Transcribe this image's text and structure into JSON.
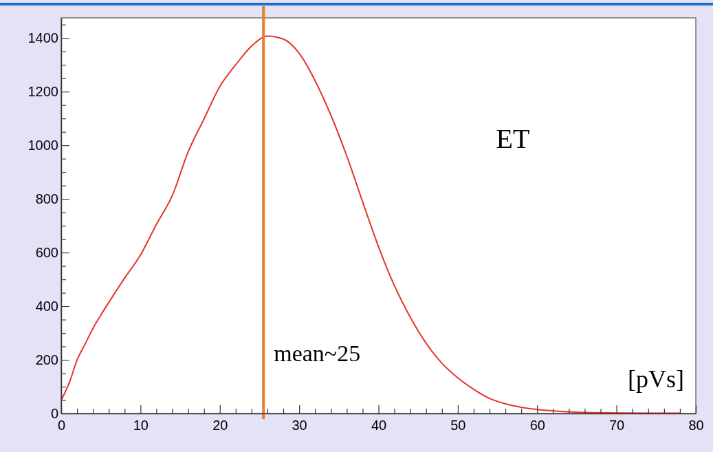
{
  "chart_data": {
    "type": "line",
    "title": "ET",
    "xlabel": "[pVs]",
    "x": [
      0,
      1,
      2,
      3,
      4,
      5,
      6,
      8,
      10,
      12,
      14,
      16,
      18,
      20,
      22,
      24,
      26,
      28,
      30,
      32,
      34,
      36,
      38,
      40,
      42,
      44,
      46,
      48,
      50,
      52,
      54,
      56,
      58,
      60,
      63,
      66,
      70,
      74,
      78
    ],
    "series": [
      {
        "color": "#e8322a",
        "values": [
          49,
          113,
          199,
          258,
          317,
          367,
          414,
          505,
          591,
          705,
          812,
          975,
          1098,
          1219,
          1300,
          1370,
          1407,
          1396,
          1343,
          1241,
          1112,
          960,
          789,
          622,
          477,
          359,
          262,
          187,
          133,
          90,
          56,
          36,
          23,
          15,
          8,
          4,
          2,
          1,
          1
        ]
      }
    ],
    "xlim": [
      0,
      80
    ],
    "ylim": [
      0,
      1475
    ],
    "xticks": [
      0,
      {
        "value": 2,
        "label": null
      },
      {
        "value": 4,
        "label": null
      },
      {
        "value": 6,
        "label": null
      },
      {
        "value": 8,
        "label": null
      },
      10,
      {
        "value": 12,
        "label": null
      },
      {
        "value": 14,
        "label": null
      },
      {
        "value": 16,
        "label": null
      },
      {
        "value": 18,
        "label": null
      },
      20,
      {
        "value": 22,
        "label": null
      },
      {
        "value": 24,
        "label": null
      },
      {
        "value": 26,
        "label": null
      },
      {
        "value": 28,
        "label": null
      },
      30,
      {
        "value": 32,
        "label": null
      },
      {
        "value": 34,
        "label": null
      },
      {
        "value": 36,
        "label": null
      },
      {
        "value": 38,
        "label": null
      },
      40,
      {
        "value": 42,
        "label": null
      },
      {
        "value": 44,
        "label": null
      },
      {
        "value": 46,
        "label": null
      },
      {
        "value": 48,
        "label": null
      },
      50,
      {
        "value": 52,
        "label": null
      },
      {
        "value": 54,
        "label": null
      },
      {
        "value": 56,
        "label": null
      },
      {
        "value": 58,
        "label": null
      },
      60,
      {
        "value": 62,
        "label": null
      },
      {
        "value": 64,
        "label": null
      },
      {
        "value": 66,
        "label": null
      },
      {
        "value": 68,
        "label": null
      },
      70,
      {
        "value": 72,
        "label": null
      },
      {
        "value": 74,
        "label": null
      },
      {
        "value": 76,
        "label": null
      },
      {
        "value": 78,
        "label": null
      },
      80
    ],
    "yticks": [
      0,
      {
        "value": 50,
        "label": null
      },
      {
        "value": 100,
        "label": null
      },
      {
        "value": 150,
        "label": null
      },
      200,
      {
        "value": 250,
        "label": null
      },
      {
        "value": 300,
        "label": null
      },
      {
        "value": 350,
        "label": null
      },
      400,
      {
        "value": 450,
        "label": null
      },
      {
        "value": 500,
        "label": null
      },
      {
        "value": 550,
        "label": null
      },
      600,
      {
        "value": 650,
        "label": null
      },
      {
        "value": 700,
        "label": null
      },
      {
        "value": 750,
        "label": null
      },
      800,
      {
        "value": 850,
        "label": null
      },
      {
        "value": 900,
        "label": null
      },
      {
        "value": 950,
        "label": null
      },
      1000,
      {
        "value": 1050,
        "label": null
      },
      {
        "value": 1100,
        "label": null
      },
      {
        "value": 1150,
        "label": null
      },
      1200,
      {
        "value": 1250,
        "label": null
      },
      {
        "value": 1300,
        "label": null
      },
      {
        "value": 1350,
        "label": null
      },
      1400,
      {
        "value": 1450,
        "label": null
      }
    ],
    "ref_lines": [
      {
        "axis": "x",
        "value": 25.5,
        "label": "mean~25",
        "color": "#e87d2f"
      }
    ],
    "grid": false,
    "marker": "none",
    "line_style": "solid"
  }
}
